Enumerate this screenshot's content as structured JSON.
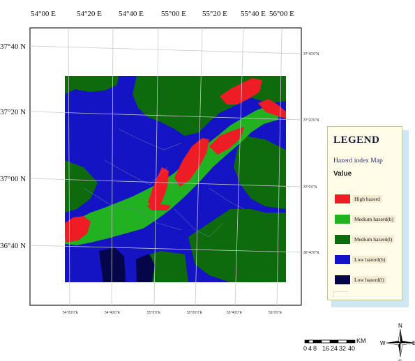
{
  "top_labels": [
    "54°00 E",
    "54°20 E",
    "54°40 E",
    "55°00 E",
    "55°20 E",
    "55°40 E",
    "56°00 E"
  ],
  "left_labels": [
    "37°40 N",
    "37°20 N",
    "37°00 N",
    "36°40 N"
  ],
  "bottom_small_labels": [
    "54°20'0\"E",
    "54°40'0\"E",
    "55°0'0\"E",
    "55°20'0\"E",
    "55°40'0\"E",
    "56°0'0\"E"
  ],
  "right_small_labels": [
    "37°40'0\"N",
    "37°20'0\"N",
    "37°0'0\"N",
    "36°40'0\"N"
  ],
  "legend": {
    "title": "LEGEND",
    "subtitle": "Hazerd index Map",
    "value_label": "Value",
    "items": [
      {
        "label": "High hazerd",
        "color": "#ee1c24"
      },
      {
        "label": "Medium hazerd(h)",
        "color": "#22b120"
      },
      {
        "label": "Medium hazerd(l)",
        "color": "#0d6a0d"
      },
      {
        "label": "Low hazerd(h)",
        "color": "#1212c8"
      },
      {
        "label": "Low hazerd(l)",
        "color": "#05054a"
      }
    ]
  },
  "scalebar": {
    "ticks": [
      "0",
      "4",
      "8",
      "16",
      "24",
      "32",
      "40"
    ],
    "unit": "KM"
  },
  "compass": {
    "n": "N",
    "s": "S",
    "e": "E",
    "w": "W"
  },
  "colors": {
    "high": "#ee1c24",
    "medium_h": "#22b120",
    "medium_l": "#0d6a0d",
    "low_h": "#1212c8",
    "low_l": "#05054a"
  }
}
